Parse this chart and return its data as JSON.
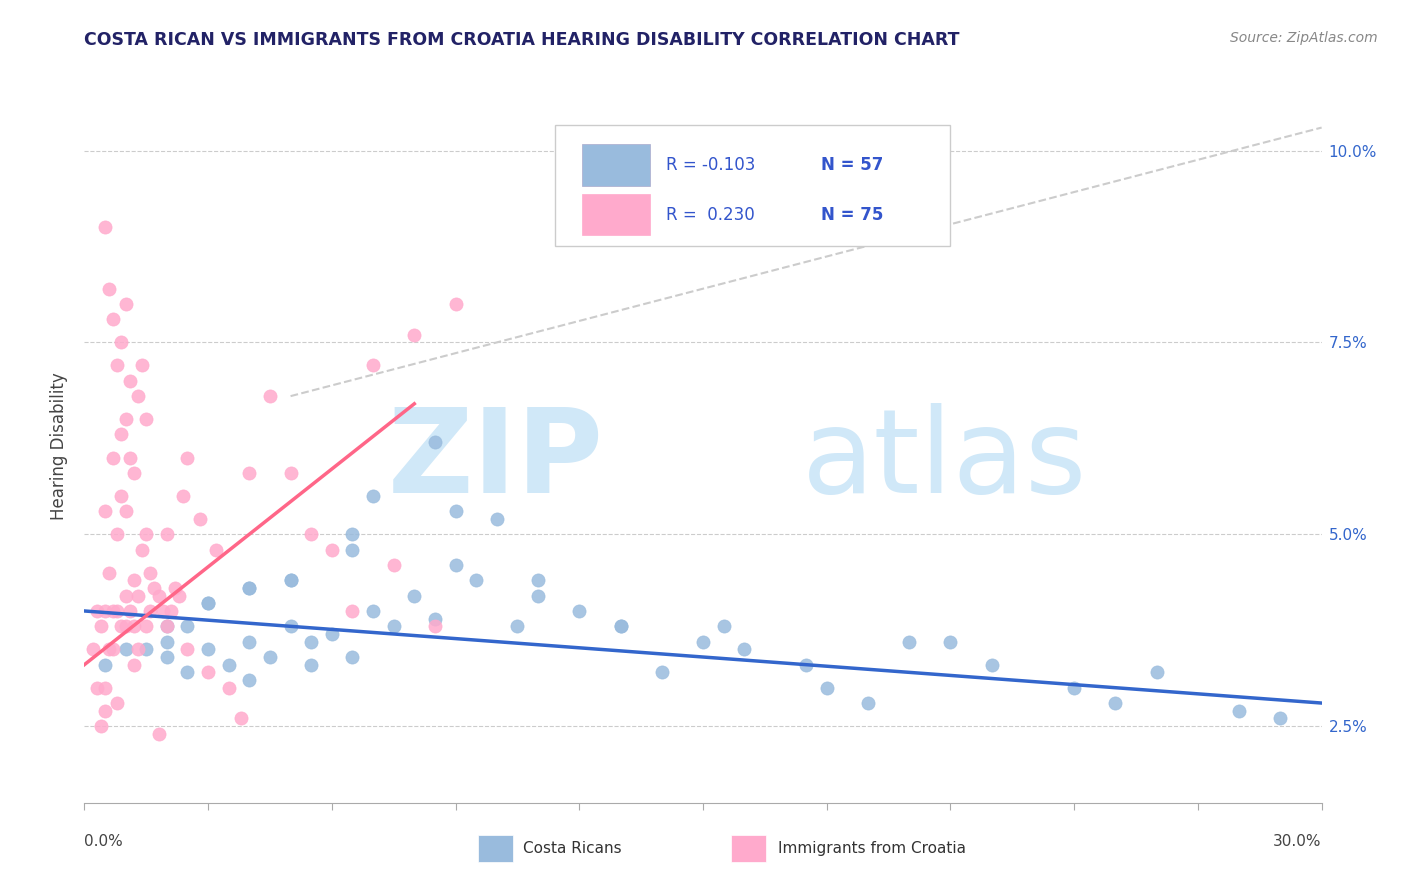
{
  "title": "COSTA RICAN VS IMMIGRANTS FROM CROATIA HEARING DISABILITY CORRELATION CHART",
  "source": "Source: ZipAtlas.com",
  "ylabel": "Hearing Disability",
  "ytick_labels": [
    "2.5%",
    "5.0%",
    "7.5%",
    "10.0%"
  ],
  "ytick_values": [
    0.025,
    0.05,
    0.075,
    0.1
  ],
  "xmin": 0.0,
  "xmax": 0.3,
  "ymin": 0.015,
  "ymax": 0.108,
  "legend_r1": "R = -0.103",
  "legend_n1": "N = 57",
  "legend_r2": "R =  0.230",
  "legend_n2": "N = 75",
  "color_blue": "#99BBDD",
  "color_pink": "#FFAACC",
  "color_blue_line": "#3366CC",
  "color_pink_line": "#FF6688",
  "color_dashed": "#CCCCCC",
  "blue_scatter_x": [
    0.005,
    0.01,
    0.015,
    0.02,
    0.02,
    0.02,
    0.025,
    0.025,
    0.03,
    0.03,
    0.035,
    0.04,
    0.04,
    0.04,
    0.045,
    0.05,
    0.05,
    0.055,
    0.055,
    0.06,
    0.065,
    0.065,
    0.07,
    0.07,
    0.075,
    0.08,
    0.085,
    0.09,
    0.09,
    0.095,
    0.1,
    0.105,
    0.11,
    0.12,
    0.13,
    0.14,
    0.155,
    0.16,
    0.175,
    0.18,
    0.19,
    0.2,
    0.21,
    0.22,
    0.24,
    0.25,
    0.26,
    0.28,
    0.29,
    0.15,
    0.13,
    0.11,
    0.085,
    0.065,
    0.05,
    0.04,
    0.03
  ],
  "blue_scatter_y": [
    0.033,
    0.035,
    0.035,
    0.038,
    0.034,
    0.036,
    0.032,
    0.038,
    0.035,
    0.041,
    0.033,
    0.031,
    0.036,
    0.043,
    0.034,
    0.038,
    0.044,
    0.033,
    0.036,
    0.037,
    0.034,
    0.048,
    0.04,
    0.055,
    0.038,
    0.042,
    0.039,
    0.046,
    0.053,
    0.044,
    0.052,
    0.038,
    0.042,
    0.04,
    0.038,
    0.032,
    0.038,
    0.035,
    0.033,
    0.03,
    0.028,
    0.036,
    0.036,
    0.033,
    0.03,
    0.028,
    0.032,
    0.027,
    0.026,
    0.036,
    0.038,
    0.044,
    0.062,
    0.05,
    0.044,
    0.043,
    0.041
  ],
  "pink_scatter_x": [
    0.002,
    0.003,
    0.003,
    0.004,
    0.004,
    0.005,
    0.005,
    0.005,
    0.005,
    0.006,
    0.006,
    0.006,
    0.007,
    0.007,
    0.007,
    0.007,
    0.008,
    0.008,
    0.008,
    0.009,
    0.009,
    0.009,
    0.009,
    0.01,
    0.01,
    0.01,
    0.01,
    0.01,
    0.011,
    0.011,
    0.011,
    0.012,
    0.012,
    0.012,
    0.013,
    0.013,
    0.013,
    0.014,
    0.014,
    0.015,
    0.015,
    0.015,
    0.016,
    0.016,
    0.017,
    0.018,
    0.019,
    0.02,
    0.02,
    0.021,
    0.022,
    0.023,
    0.024,
    0.025,
    0.025,
    0.028,
    0.03,
    0.032,
    0.035,
    0.038,
    0.04,
    0.045,
    0.05,
    0.055,
    0.06,
    0.065,
    0.07,
    0.075,
    0.08,
    0.085,
    0.09,
    0.005,
    0.008,
    0.012,
    0.018
  ],
  "pink_scatter_y": [
    0.035,
    0.04,
    0.03,
    0.038,
    0.025,
    0.03,
    0.04,
    0.053,
    0.09,
    0.035,
    0.045,
    0.082,
    0.035,
    0.04,
    0.06,
    0.078,
    0.04,
    0.05,
    0.072,
    0.038,
    0.055,
    0.063,
    0.075,
    0.038,
    0.042,
    0.053,
    0.065,
    0.08,
    0.04,
    0.06,
    0.07,
    0.038,
    0.044,
    0.058,
    0.042,
    0.035,
    0.068,
    0.048,
    0.072,
    0.038,
    0.05,
    0.065,
    0.04,
    0.045,
    0.043,
    0.042,
    0.04,
    0.038,
    0.05,
    0.04,
    0.043,
    0.042,
    0.055,
    0.035,
    0.06,
    0.052,
    0.032,
    0.048,
    0.03,
    0.026,
    0.058,
    0.068,
    0.058,
    0.05,
    0.048,
    0.04,
    0.072,
    0.046,
    0.076,
    0.038,
    0.08,
    0.027,
    0.028,
    0.033,
    0.024
  ],
  "blue_line_x": [
    0.0,
    0.3
  ],
  "blue_line_y": [
    0.04,
    0.028
  ],
  "pink_line_x": [
    0.0,
    0.08
  ],
  "pink_line_y": [
    0.033,
    0.067
  ],
  "dashed_line_x": [
    0.05,
    0.3
  ],
  "dashed_line_y": [
    0.068,
    0.103
  ]
}
